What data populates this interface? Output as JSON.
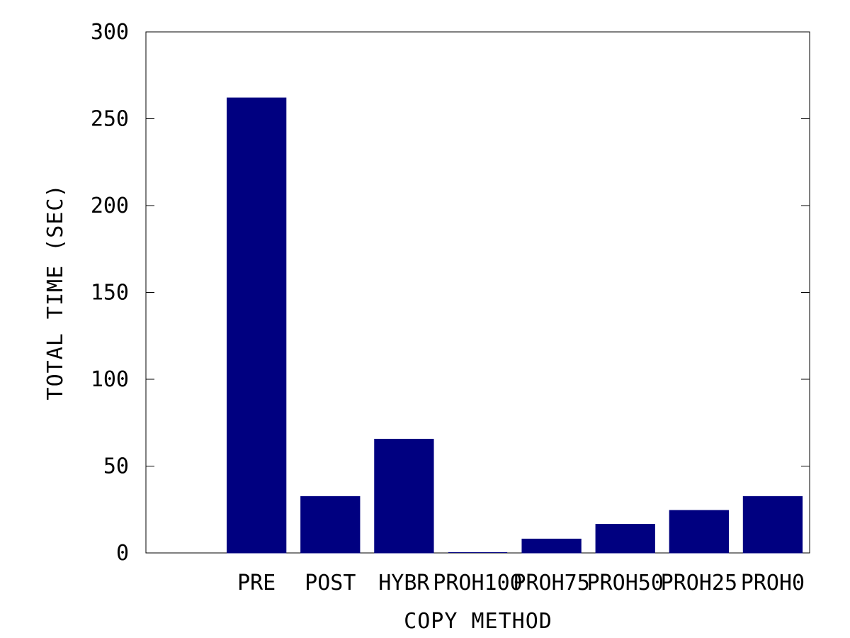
{
  "chart_data": {
    "type": "bar",
    "title": "",
    "xlabel": "COPY METHOD",
    "ylabel": "TOTAL TIME (SEC)",
    "ylim": [
      0,
      300
    ],
    "yticks": [
      "0",
      "50",
      "100",
      "150",
      "200",
      "250",
      "300"
    ],
    "categories": [
      "",
      "PRE",
      "POST",
      "HYBR",
      "PROH100",
      "PROH75",
      "PROH50",
      "PROH25",
      "PROH0"
    ],
    "series": [
      {
        "values": [
          0,
          262,
          32.5,
          65.5,
          0,
          8,
          16.5,
          24.5,
          32.5
        ]
      }
    ],
    "bar_color": "#000080",
    "grid": false,
    "legend": "none"
  }
}
